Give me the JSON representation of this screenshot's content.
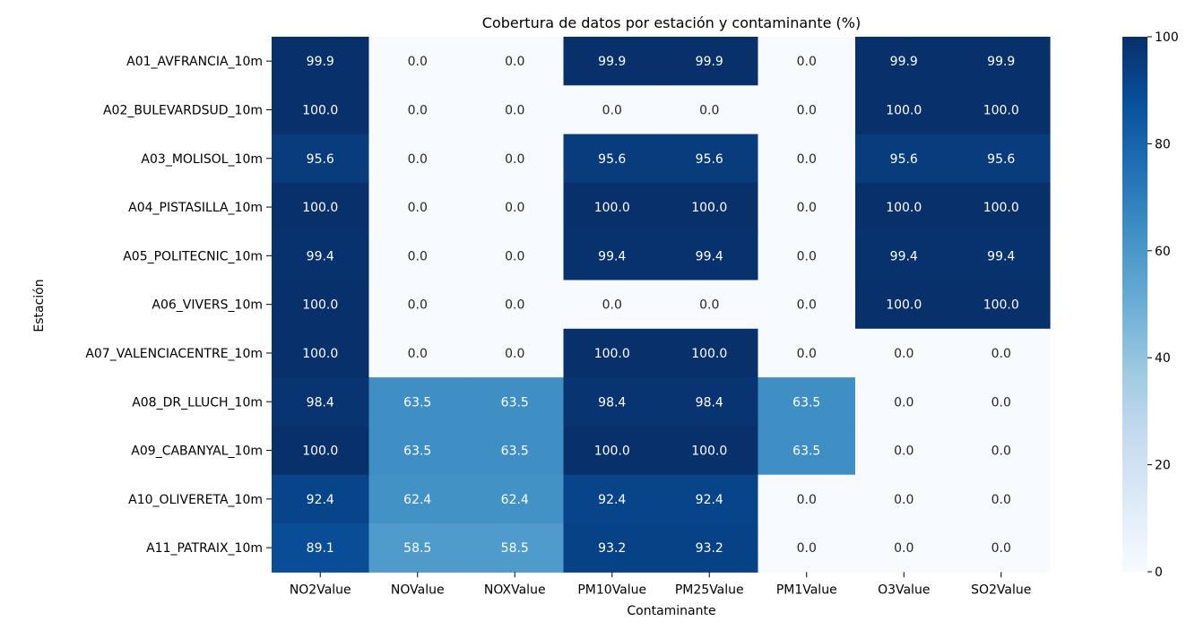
{
  "chart_data": {
    "type": "heatmap",
    "title": "Cobertura de datos por estación y contaminante (%)",
    "xlabel": "Contaminante",
    "ylabel": "Estación",
    "x_categories": [
      "NO2Value",
      "NOValue",
      "NOXValue",
      "PM10Value",
      "PM25Value",
      "PM1Value",
      "O3Value",
      "SO2Value"
    ],
    "y_categories": [
      "A01_AVFRANCIA_10m",
      "A02_BULEVARDSUD_10m",
      "A03_MOLISOL_10m",
      "A04_PISTASILLA_10m",
      "A05_POLITECNIC_10m",
      "A06_VIVERS_10m",
      "A07_VALENCIACENTRE_10m",
      "A08_DR_LLUCH_10m",
      "A09_CABANYAL_10m",
      "A10_OLIVERETA_10m",
      "A11_PATRAIX_10m"
    ],
    "values": [
      [
        99.9,
        0.0,
        0.0,
        99.9,
        99.9,
        0.0,
        99.9,
        99.9
      ],
      [
        100.0,
        0.0,
        0.0,
        0.0,
        0.0,
        0.0,
        100.0,
        100.0
      ],
      [
        95.6,
        0.0,
        0.0,
        95.6,
        95.6,
        0.0,
        95.6,
        95.6
      ],
      [
        100.0,
        0.0,
        0.0,
        100.0,
        100.0,
        0.0,
        100.0,
        100.0
      ],
      [
        99.4,
        0.0,
        0.0,
        99.4,
        99.4,
        0.0,
        99.4,
        99.4
      ],
      [
        100.0,
        0.0,
        0.0,
        0.0,
        0.0,
        0.0,
        100.0,
        100.0
      ],
      [
        100.0,
        0.0,
        0.0,
        100.0,
        100.0,
        0.0,
        0.0,
        0.0
      ],
      [
        98.4,
        63.5,
        63.5,
        98.4,
        98.4,
        63.5,
        0.0,
        0.0
      ],
      [
        100.0,
        63.5,
        63.5,
        100.0,
        100.0,
        63.5,
        0.0,
        0.0
      ],
      [
        92.4,
        62.4,
        62.4,
        92.4,
        92.4,
        0.0,
        0.0,
        0.0
      ],
      [
        89.1,
        58.5,
        58.5,
        93.2,
        93.2,
        0.0,
        0.0,
        0.0
      ]
    ],
    "colormap": "Blues",
    "value_range": [
      0,
      100
    ],
    "colorbar_ticks": [
      0,
      20,
      40,
      60,
      80,
      100
    ],
    "annotation_format": "0.1f",
    "grid": false,
    "legend": "colorbar-right"
  }
}
